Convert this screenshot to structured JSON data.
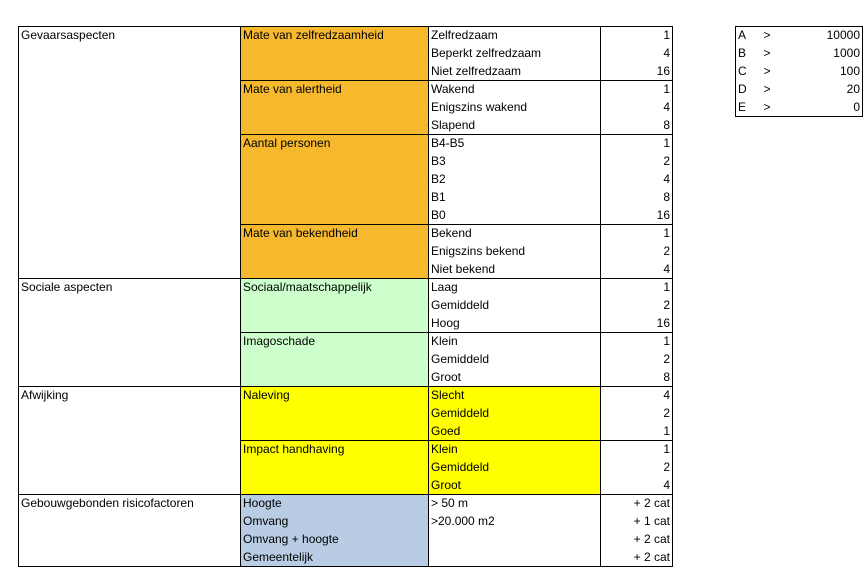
{
  "risk_table": {
    "sections": [
      {
        "aspect": "Gevaarsaspecten",
        "groups": [
          {
            "name": "Mate van zelfredzaamheid",
            "color": "#f6b92e",
            "options": [
              {
                "label": "Zelfredzaam",
                "score": 1
              },
              {
                "label": "Beperkt zelfredzaam",
                "score": 4
              },
              {
                "label": "Niet zelfredzaam",
                "score": 16
              }
            ]
          },
          {
            "name": "Mate van alertheid",
            "color": "#f6b92e",
            "options": [
              {
                "label": "Wakend",
                "score": 1
              },
              {
                "label": "Enigszins wakend",
                "score": 4
              },
              {
                "label": "Slapend",
                "score": 8
              }
            ]
          },
          {
            "name": "Aantal personen",
            "color": "#f6b92e",
            "options": [
              {
                "label": "B4-B5",
                "score": 1
              },
              {
                "label": "B3",
                "score": 2
              },
              {
                "label": "B2",
                "score": 4
              },
              {
                "label": "B1",
                "score": 8
              },
              {
                "label": "B0",
                "score": 16
              }
            ]
          },
          {
            "name": "Mate van bekendheid",
            "color": "#f6b92e",
            "options": [
              {
                "label": "Bekend",
                "score": 1
              },
              {
                "label": "Enigszins bekend",
                "score": 2
              },
              {
                "label": "Niet bekend",
                "score": 4
              }
            ]
          }
        ]
      },
      {
        "aspect": "Sociale aspecten",
        "groups": [
          {
            "name": "Sociaal/maatschappelijk",
            "color": "#ccffcc",
            "options": [
              {
                "label": "Laag",
                "score": 1
              },
              {
                "label": "Gemiddeld",
                "score": 2
              },
              {
                "label": "Hoog",
                "score": 16
              }
            ]
          },
          {
            "name": "Imagoschade",
            "color": "#ccffcc",
            "options": [
              {
                "label": "Klein",
                "score": 1
              },
              {
                "label": "Gemiddeld",
                "score": 2
              },
              {
                "label": "Groot",
                "score": 8
              }
            ]
          }
        ]
      },
      {
        "aspect": "Afwijking",
        "groups": [
          {
            "name": "Naleving",
            "color": "#ffff00",
            "option_color": "#ffff00",
            "options": [
              {
                "label": "Slecht",
                "score": 4
              },
              {
                "label": "Gemiddeld",
                "score": 2
              },
              {
                "label": "Goed",
                "score": 1
              }
            ]
          },
          {
            "name": "Impact handhaving",
            "color": "#ffff00",
            "option_color": "#ffff00",
            "options": [
              {
                "label": "Klein",
                "score": 1
              },
              {
                "label": "Gemiddeld",
                "score": 2
              },
              {
                "label": "Groot",
                "score": 4
              }
            ]
          }
        ]
      }
    ],
    "building_factors": {
      "aspect": "Gebouwgebonden risicofactoren",
      "color": "#b8cce4",
      "rows": [
        {
          "factor": "Hoogte",
          "criterion": "> 50 m",
          "effect": "+ 2 cat"
        },
        {
          "factor": "Omvang",
          "criterion": ">20.000 m2",
          "effect": "+ 1 cat"
        },
        {
          "factor": "Omvang + hoogte",
          "effect": "+ 2 cat"
        },
        {
          "factor": "Gemeentelijk",
          "effect": "+ 2 cat"
        }
      ]
    }
  },
  "class_table": {
    "rows": [
      {
        "class": "A",
        "operator": ">",
        "threshold": 10000
      },
      {
        "class": "B",
        "operator": ">",
        "threshold": 1000
      },
      {
        "class": "C",
        "operator": ">",
        "threshold": 100
      },
      {
        "class": "D",
        "operator": ">",
        "threshold": 20
      },
      {
        "class": "E",
        "operator": ">",
        "threshold": 0
      }
    ]
  }
}
